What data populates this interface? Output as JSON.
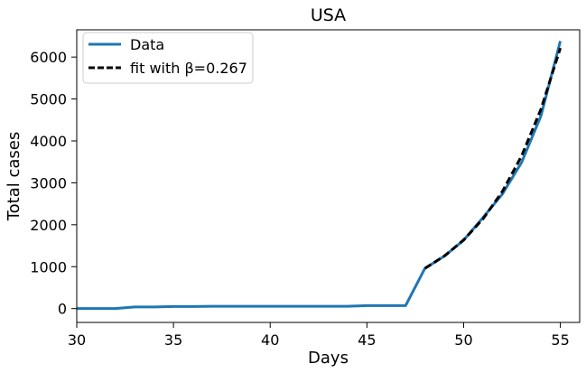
{
  "chart_data": {
    "type": "line",
    "title": "USA",
    "xlabel": "Days",
    "ylabel": "Total cases",
    "xlim": [
      30,
      56
    ],
    "ylim": [
      -330,
      6650
    ],
    "xticks": [
      30,
      35,
      40,
      45,
      50,
      55
    ],
    "yticks": [
      0,
      1000,
      2000,
      3000,
      4000,
      5000,
      6000
    ],
    "grid": false,
    "legend": "top-left",
    "series": [
      {
        "name": "Data",
        "style": "solid",
        "color": "#1f77b4",
        "x": [
          30,
          31,
          32,
          33,
          34,
          35,
          36,
          37,
          38,
          39,
          40,
          41,
          42,
          43,
          44,
          45,
          46,
          47,
          48,
          49,
          50,
          51,
          52,
          53,
          54,
          55
        ],
        "y": [
          0,
          0,
          0,
          40,
          40,
          50,
          50,
          55,
          55,
          55,
          55,
          55,
          55,
          55,
          55,
          70,
          70,
          70,
          960,
          1250,
          1630,
          2170,
          2730,
          3490,
          4600,
          6380
        ]
      },
      {
        "name": "fit with β=0.267",
        "style": "dashed",
        "color": "#000000",
        "x": [
          48,
          49,
          50,
          51,
          52,
          53,
          54,
          55
        ],
        "y": [
          960,
          1253,
          1637,
          2137,
          2791,
          3644,
          4759,
          6215
        ]
      }
    ]
  }
}
